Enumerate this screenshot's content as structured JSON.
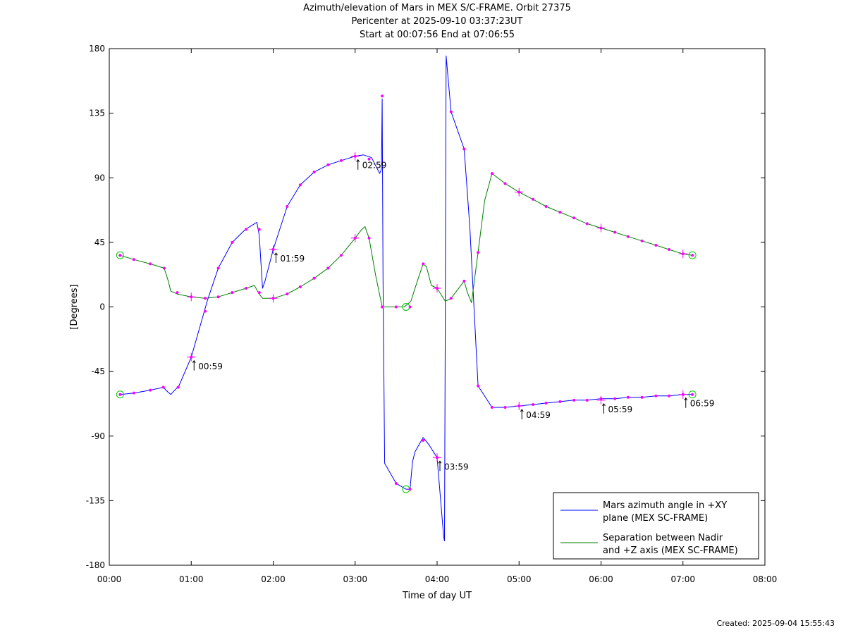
{
  "chart_data": {
    "type": "line",
    "title": "Azimuth/elevation of Mars in MEX S/C-FRAME.  Orbit 27375",
    "subtitle_lines": [
      "Pericenter at 2025-09-10 03:37:23UT",
      "Start at 00:07:56 End at 07:06:55"
    ],
    "xlabel": "Time of day UT",
    "ylabel": "[Degrees]",
    "xlim": [
      0,
      8
    ],
    "ylim": [
      -180,
      180
    ],
    "xticks": [
      0,
      1,
      2,
      3,
      4,
      5,
      6,
      7,
      8
    ],
    "xtick_labels": [
      "00:00",
      "01:00",
      "02:00",
      "03:00",
      "04:00",
      "05:00",
      "06:00",
      "07:00",
      "08:00"
    ],
    "yticks": [
      180,
      135,
      90,
      45,
      0,
      -45,
      -90,
      -135,
      -180
    ],
    "ytick_labels": [
      "180",
      "135",
      "90",
      "45",
      "0",
      "-45",
      "-90",
      "-135",
      "-180"
    ],
    "grid": false,
    "legend_position": "bottom-right",
    "series": [
      {
        "name": "Mars azimuth angle in +XY plane (MEX SC-FRAME)",
        "color": "#0000ff",
        "x": [
          0.132,
          0.3,
          0.5,
          0.66,
          0.71,
          0.75,
          0.85,
          1.0,
          1.1,
          1.2,
          1.33,
          1.5,
          1.66,
          1.8,
          1.83,
          1.87,
          1.9,
          2.0,
          2.17,
          2.33,
          2.5,
          2.67,
          2.83,
          3.0,
          3.1,
          3.2,
          3.3,
          3.32,
          3.33,
          3.34,
          3.36,
          3.5,
          3.62,
          3.67,
          3.7,
          3.73,
          3.83,
          3.9,
          4.0,
          4.08,
          4.09,
          4.1,
          4.11,
          4.17,
          4.33,
          4.4,
          4.5,
          4.67,
          4.83,
          5.0,
          5.17,
          5.33,
          5.5,
          5.67,
          5.83,
          6.0,
          6.17,
          6.33,
          6.5,
          6.67,
          6.83,
          7.0,
          7.115
        ],
        "y": [
          -61,
          -60,
          -58,
          -56,
          -59,
          -61,
          -55,
          -35,
          -15,
          5,
          27,
          45,
          54,
          59,
          50,
          13,
          18,
          40,
          70,
          85,
          94,
          99,
          102,
          105,
          106,
          104,
          93,
          96,
          145,
          20,
          -109,
          -123,
          -127,
          -127,
          -108,
          -101,
          -91,
          -96,
          -105,
          -160,
          -163,
          -10,
          175,
          136,
          110,
          55,
          -55,
          -70,
          -70,
          -69,
          -68,
          -67,
          -66,
          -65,
          -65,
          -64,
          -64,
          -63,
          -63,
          -62,
          -62,
          -61,
          -61
        ]
      },
      {
        "name": "Separation between Nadir and +Z axis (MEX SC-FRAME)",
        "color": "#008000",
        "x": [
          0.132,
          0.3,
          0.5,
          0.67,
          0.72,
          0.75,
          0.83,
          1.0,
          1.17,
          1.33,
          1.5,
          1.67,
          1.77,
          1.83,
          1.87,
          2.0,
          2.17,
          2.33,
          2.5,
          2.67,
          2.83,
          3.0,
          3.08,
          3.12,
          3.17,
          3.25,
          3.33,
          3.4,
          3.5,
          3.6,
          3.68,
          3.77,
          3.83,
          3.87,
          3.93,
          4.0,
          4.1,
          4.17,
          4.25,
          4.33,
          4.37,
          4.42,
          4.5,
          4.58,
          4.67,
          4.83,
          5.0,
          5.17,
          5.33,
          5.5,
          5.67,
          5.83,
          6.0,
          6.17,
          6.33,
          6.5,
          6.67,
          6.83,
          7.0,
          7.115
        ],
        "y": [
          36,
          33,
          30,
          27,
          18,
          11,
          9,
          7,
          6,
          7,
          10,
          13,
          15,
          9,
          6,
          6,
          9,
          14,
          20,
          27,
          36,
          48,
          54,
          56,
          48,
          22,
          0,
          0,
          0,
          0,
          4,
          20,
          30,
          28,
          15,
          13,
          4,
          6,
          12,
          18,
          10,
          3,
          38,
          74,
          93,
          86,
          80,
          75,
          70,
          66,
          62,
          58,
          55,
          52,
          49,
          46,
          43,
          40,
          37,
          36
        ]
      }
    ],
    "dot_markers": {
      "color": "#ff00ff",
      "azimuth": {
        "x": [
          0.132,
          0.3,
          0.5,
          0.66,
          0.84,
          1.0,
          1.17,
          1.33,
          1.5,
          1.67,
          1.83,
          2.0,
          2.17,
          2.33,
          2.5,
          2.67,
          2.83,
          3.0,
          3.17,
          3.33,
          3.5,
          3.67,
          3.83,
          4.0,
          4.17,
          4.33,
          4.5,
          4.67,
          4.83,
          5.0,
          5.17,
          5.33,
          5.5,
          5.67,
          5.83,
          6.0,
          6.17,
          6.33,
          6.5,
          6.67,
          6.83,
          7.0,
          7.115
        ],
        "y": [
          -61,
          -60,
          -58,
          -56,
          -56,
          -35,
          -3,
          27,
          45,
          54,
          54,
          40,
          70,
          85,
          94,
          99,
          102,
          105,
          103,
          147,
          -123,
          -127,
          -93,
          -105,
          136,
          110,
          -55,
          -70,
          -70,
          -69,
          -68,
          -67,
          -66,
          -65,
          -65,
          -64,
          -64,
          -63,
          -63,
          -62,
          -62,
          -61,
          -61
        ]
      },
      "separation": {
        "x": [
          0.132,
          0.3,
          0.5,
          0.67,
          0.83,
          1.0,
          1.17,
          1.33,
          1.5,
          1.67,
          1.83,
          2.0,
          2.17,
          2.33,
          2.5,
          2.67,
          2.83,
          3.0,
          3.17,
          3.33,
          3.5,
          3.67,
          3.83,
          4.0,
          4.17,
          4.33,
          4.5,
          4.67,
          4.83,
          5.0,
          5.17,
          5.33,
          5.5,
          5.67,
          5.83,
          6.0,
          6.17,
          6.33,
          6.5,
          6.67,
          6.83,
          7.0,
          7.115
        ],
        "y": [
          36,
          33,
          30,
          27,
          10,
          7,
          6,
          7,
          10,
          13,
          10,
          6,
          9,
          14,
          20,
          27,
          36,
          48,
          48,
          0,
          0,
          0,
          30,
          13,
          6,
          18,
          38,
          93,
          86,
          80,
          75,
          70,
          66,
          62,
          58,
          55,
          52,
          49,
          46,
          43,
          40,
          37,
          36
        ]
      }
    },
    "hour_markers": {
      "marker": "plus",
      "azimuth": {
        "x": [
          1.0,
          2.0,
          3.0,
          4.0,
          5.0,
          6.0,
          7.0
        ],
        "y": [
          -35,
          40,
          105,
          -105,
          -69,
          -65,
          -61
        ]
      },
      "separation": {
        "x": [
          1.0,
          2.0,
          3.0,
          4.0,
          5.0,
          6.0,
          7.0
        ],
        "y": [
          7,
          6,
          48,
          13,
          80,
          55,
          37
        ]
      }
    },
    "circle_markers": {
      "color": "#00cc00",
      "points": [
        {
          "x": 0.132,
          "y": -61
        },
        {
          "x": 0.132,
          "y": 36
        },
        {
          "x": 3.62,
          "y": -127
        },
        {
          "x": 3.62,
          "y": 0
        },
        {
          "x": 7.115,
          "y": -61
        },
        {
          "x": 7.115,
          "y": 36
        }
      ]
    },
    "time_annotations": [
      {
        "text": "00:59",
        "x": 1.0,
        "y": -35
      },
      {
        "text": "01:59",
        "x": 2.0,
        "y": 40
      },
      {
        "text": "02:59",
        "x": 3.0,
        "y": 105
      },
      {
        "text": "03:59",
        "x": 4.0,
        "y": -105
      },
      {
        "text": "04:59",
        "x": 5.0,
        "y": -69
      },
      {
        "text": "05:59",
        "x": 6.0,
        "y": -65
      },
      {
        "text": "06:59",
        "x": 7.0,
        "y": -61
      }
    ],
    "legend_lines": [
      [
        "Mars azimuth angle in +XY",
        "plane (MEX SC-FRAME)"
      ],
      [
        "Separation between Nadir",
        "and +Z axis (MEX SC-FRAME)"
      ]
    ]
  },
  "footer": {
    "created": "Created: 2025-09-04 15:55:43"
  }
}
